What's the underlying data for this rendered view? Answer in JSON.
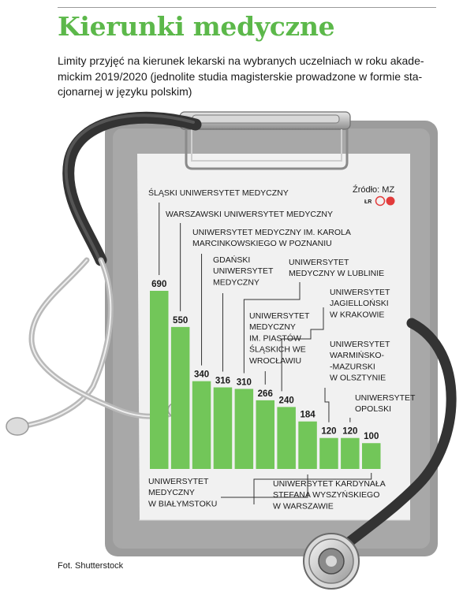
{
  "title": "Kierunki medyczne",
  "subtitle_lines": [
    "Limity przyjęć na kierunek lekarski na wybranych uczelniach w roku akade-",
    "mickim 2019/2020 (jednolite studia magisterskie prowadzone w formie sta-",
    "cjonarnej w języku polskim)"
  ],
  "source": "Źródło: MZ",
  "source_mark": "ŁR",
  "photo_credit": "Fot. Shutterstock",
  "colors": {
    "bar": "#72c659",
    "title": "#5cb84a",
    "board": "#9c9c9c",
    "paper": "#f1f1f1",
    "logo": "#e23b3b"
  },
  "chart_data": {
    "type": "bar",
    "values": [
      690,
      550,
      340,
      316,
      310,
      266,
      240,
      184,
      120,
      120,
      100
    ],
    "value_labels": [
      "690",
      "550",
      "340",
      "316",
      "310",
      "266",
      "240",
      "184",
      "120",
      "120",
      "100"
    ],
    "categories": [
      [
        "ŚLĄSKI UNIWERSYTET MEDYCZNY"
      ],
      [
        "WARSZAWSKI UNIWERSYTET MEDYCZNY"
      ],
      [
        "UNIWERSYTET MEDYCZNY IM. KAROLA",
        "MARCINKOWSKIEGO W POZNANIU"
      ],
      [
        "GDAŃSKI",
        "UNIWERSYTET",
        "MEDYCZNY"
      ],
      [
        "UNIWERSYTET",
        "MEDYCZNY W LUBLINIE"
      ],
      [
        "UNIWERSYTET",
        "MEDYCZNY",
        "IM. PIASTÓW",
        "ŚLĄSKICH WE",
        "WROCŁAWIU"
      ],
      [
        "UNIWERSYTET",
        "JAGIELLOŃSKI",
        "W KRAKOWIE"
      ],
      [
        "UNIWERSYTET",
        "MEDYCZNY",
        "W BIAŁYMSTOKU"
      ],
      [
        "UNIWERSYTET",
        "WARMIŃSKO-",
        "-MAZURSKI",
        "W OLSZTYNIE"
      ],
      [
        "UNIWERSYTET",
        "OPOLSKI"
      ],
      [
        "UNIWERSYTET KARDYNAŁA",
        "STEFANA WYSZYŃSKIEGO",
        "W WARSZAWIE"
      ]
    ],
    "ylim": [
      0,
      690
    ],
    "grid": false,
    "legend": false
  }
}
